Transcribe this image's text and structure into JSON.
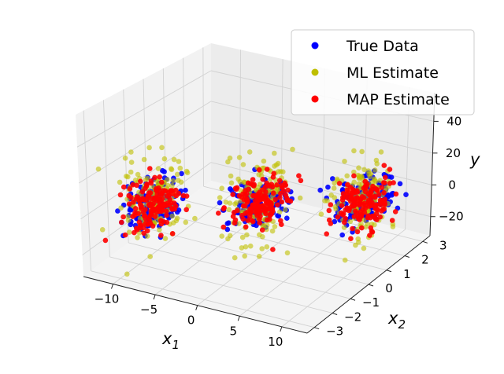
{
  "chart_data": {
    "type": "scatter",
    "projection": "3d",
    "title": "",
    "xlabel": "x_1",
    "ylabel": "x_2",
    "zlabel": "y",
    "axes": {
      "x": {
        "label_main": "x",
        "label_sub": "1",
        "ticks": [
          "−10",
          "−5",
          "0",
          "5",
          "10"
        ],
        "tick_values": [
          -10,
          -5,
          0,
          5,
          10
        ],
        "lim": [
          -13.5,
          13
        ]
      },
      "y": {
        "label_main": "x",
        "label_sub": "2",
        "ticks": [
          "−3",
          "−2",
          "−1",
          "0",
          "1",
          "2",
          "3"
        ],
        "tick_values": [
          -3,
          -2,
          -1,
          0,
          1,
          2,
          3
        ],
        "lim": [
          -3.4,
          3.4
        ]
      },
      "z": {
        "label_main": "y",
        "label_sub": "",
        "ticks": [
          "−20",
          "0",
          "20",
          "40"
        ],
        "tick_values": [
          -20,
          0,
          20,
          40
        ],
        "lim": [
          -32,
          58
        ]
      }
    },
    "grid": true,
    "legend_position": "top-right",
    "legend": [
      "True Data",
      "ML Estimate",
      "MAP Estimate"
    ],
    "series": [
      {
        "name": "True Data",
        "color": "#0000ff"
      },
      {
        "name": "ML Estimate",
        "color": "#bfbf00"
      },
      {
        "name": "MAP Estimate",
        "color": "#ff0000"
      }
    ],
    "clusters": [
      {
        "x1_center": -8,
        "x2_center": -2,
        "y_center": 5,
        "count_per_series": 150
      },
      {
        "x1_center": 0,
        "x2_center": 0,
        "y_center": 0,
        "count_per_series": 150
      },
      {
        "x1_center": 8,
        "x2_center": 2,
        "y_center": -5,
        "count_per_series": 150
      }
    ]
  }
}
